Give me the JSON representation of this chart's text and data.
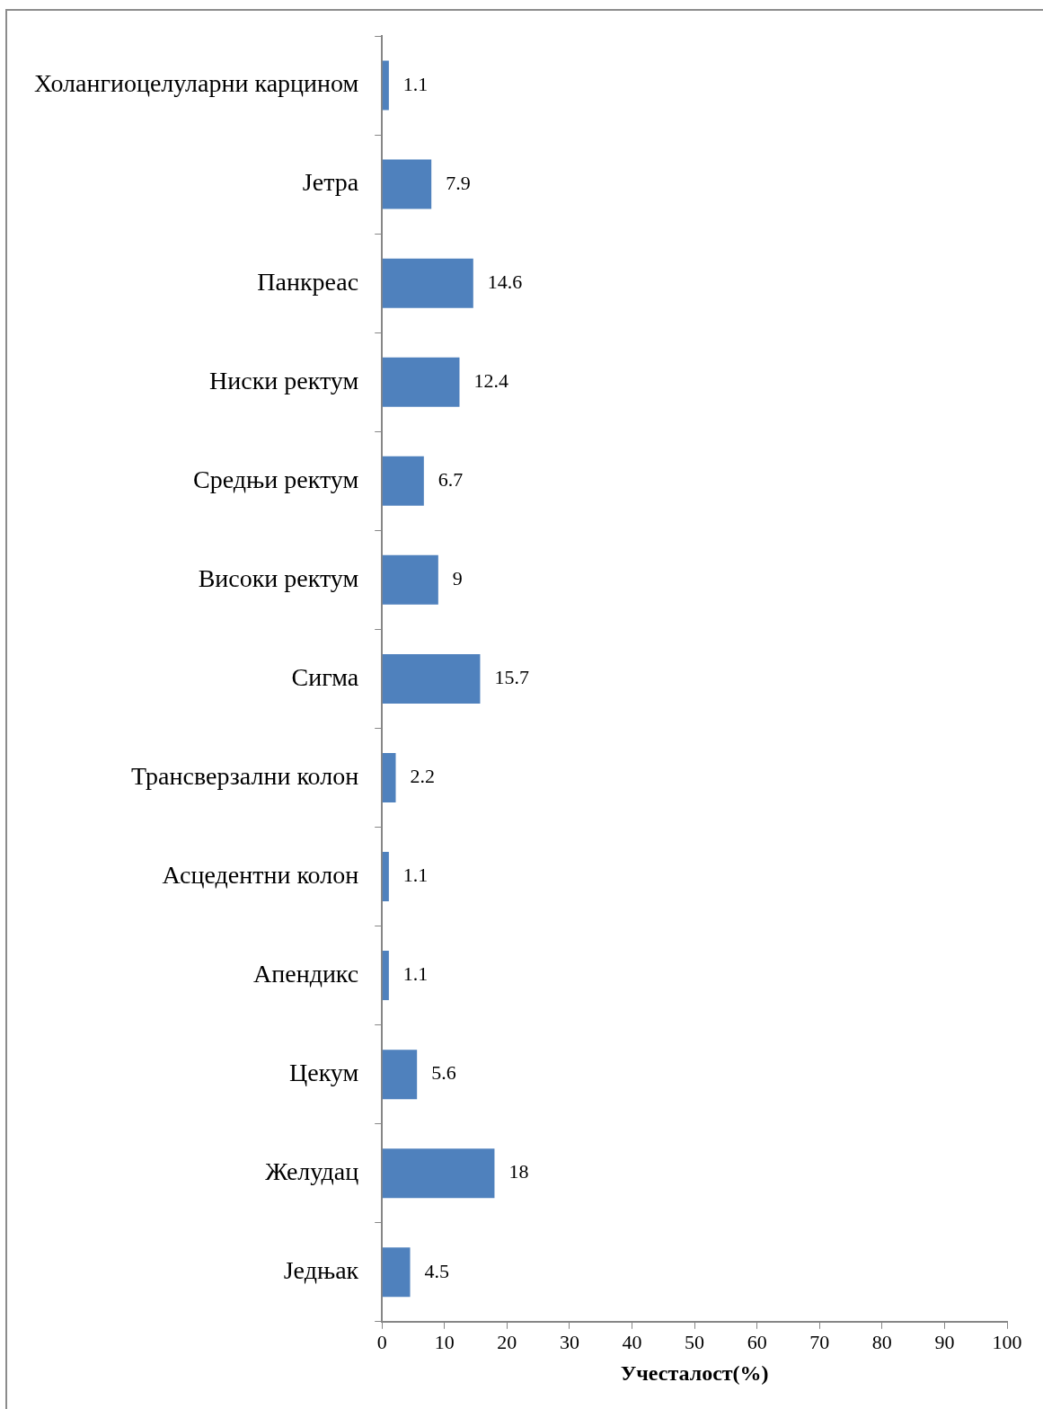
{
  "chart_data": {
    "type": "bar",
    "orientation": "horizontal",
    "xlabel": "Учесталост(%)",
    "categories": [
      "Холангиоцелуларни карцином",
      "Јетра",
      "Панкреас",
      "Ниски ректум",
      "Средњи ректум",
      "Високи ректум",
      "Сигма",
      "Трансверзални колон",
      "Асцедентни колон",
      "Апендикс",
      "Цекум",
      "Желудац",
      "Једњак"
    ],
    "values": [
      1.1,
      7.9,
      14.6,
      12.4,
      6.7,
      9,
      15.7,
      2.2,
      1.1,
      1.1,
      5.6,
      18,
      4.5
    ],
    "color": "#4f81bd",
    "xlim": [
      0,
      100
    ],
    "xticks": [
      0,
      10,
      20,
      30,
      40,
      50,
      60,
      70,
      80,
      90,
      100
    ],
    "grid": false,
    "legend": false,
    "data_labels": true
  }
}
